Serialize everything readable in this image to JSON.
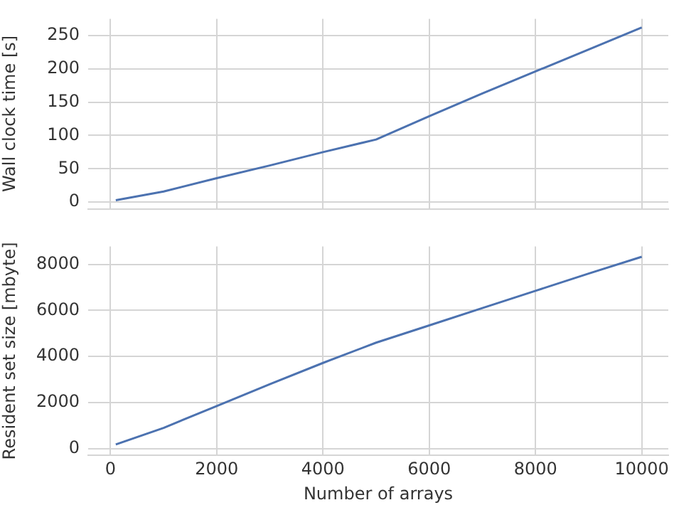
{
  "chart_data": [
    {
      "type": "line",
      "ylabel": "Wall clock time [s]",
      "x": [
        100,
        1000,
        2000,
        3000,
        4000,
        5000,
        6000,
        7000,
        8000,
        9000,
        10000
      ],
      "series": [
        {
          "color": "#4c72b0",
          "values": [
            3,
            16,
            36,
            55,
            75,
            94,
            129,
            163,
            196,
            229,
            262
          ]
        }
      ],
      "xlim": [
        -420,
        10500
      ],
      "xticks": [
        0,
        2000,
        4000,
        6000,
        8000,
        10000
      ],
      "ylim": [
        -10,
        275
      ],
      "yticks": [
        0,
        50,
        100,
        150,
        200,
        250
      ],
      "grid": true,
      "tick_labels": "y",
      "legend": false,
      "marker": "none",
      "line_style": "solid"
    },
    {
      "type": "line",
      "xlabel": "Number of arrays",
      "ylabel": "Resident set size [mbyte]",
      "x": [
        100,
        1000,
        2000,
        3000,
        4000,
        5000,
        6000,
        7000,
        8000,
        9000,
        10000
      ],
      "series": [
        {
          "color": "#4c72b0",
          "values": [
            180,
            900,
            1850,
            2800,
            3720,
            4600,
            5350,
            6100,
            6850,
            7600,
            8330
          ]
        }
      ],
      "xlim": [
        -420,
        10500
      ],
      "xticks": [
        0,
        2000,
        4000,
        6000,
        8000,
        10000
      ],
      "ylim": [
        -300,
        8780
      ],
      "yticks": [
        0,
        2000,
        4000,
        6000,
        8000
      ],
      "grid": true,
      "legend": false,
      "marker": "none",
      "line_style": "solid"
    }
  ]
}
